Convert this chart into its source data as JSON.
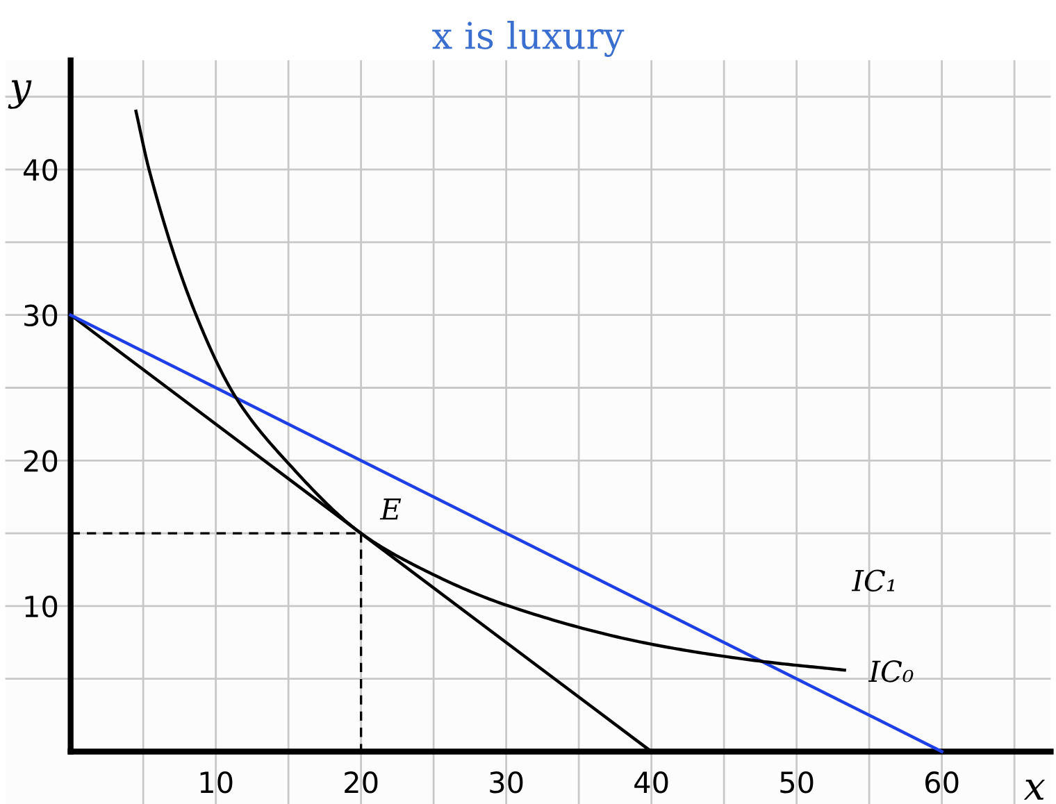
{
  "chart_data": {
    "type": "line",
    "title": "x is luxury",
    "xlabel": "x",
    "ylabel": "y",
    "xlim": [
      -4.5,
      67.5
    ],
    "ylim": [
      -3.6,
      47.5
    ],
    "xticks": [
      {
        "value": 5,
        "label": null
      },
      10,
      {
        "value": 15,
        "label": null
      },
      20,
      {
        "value": 25,
        "label": null
      },
      30,
      {
        "value": 35,
        "label": null
      },
      40,
      {
        "value": 45,
        "label": null
      },
      50,
      {
        "value": 55,
        "label": null
      },
      60,
      {
        "value": 65,
        "label": null
      }
    ],
    "yticks": [
      {
        "value": 5,
        "label": null
      },
      10,
      {
        "value": 15,
        "label": null
      },
      20,
      {
        "value": 25,
        "label": null
      },
      30,
      {
        "value": 35,
        "label": null
      },
      40,
      {
        "value": 45,
        "label": null
      }
    ],
    "grid": true,
    "marker": "none",
    "series": [
      {
        "color": "#000000",
        "x": [
          0,
          40
        ],
        "values": [
          30,
          0
        ]
      },
      {
        "color": "#1f3fe6",
        "x": [
          0,
          60
        ],
        "values": [
          30,
          0
        ]
      },
      {
        "color": "#000000",
        "x": [
          4.5,
          5.4,
          8.6,
          11.4,
          15,
          20,
          23.7,
          29.9,
          39.9,
          47.6,
          53.3
        ],
        "values": [
          44.0,
          40,
          30.1,
          24.3,
          19.8,
          15,
          12.8,
          10.1,
          7.4,
          6.2,
          5.6
        ]
      },
      {
        "color": "#000000",
        "x": [
          0,
          20
        ],
        "values": [
          15,
          15
        ],
        "line_style": "dashed"
      },
      {
        "color": "#000000",
        "x": [
          20,
          20
        ],
        "values": [
          15,
          0
        ],
        "line_style": "dashed"
      }
    ],
    "annotations": [
      {
        "text": "E",
        "x": 20,
        "y": 15
      },
      "IC₁",
      "IC₀"
    ]
  }
}
